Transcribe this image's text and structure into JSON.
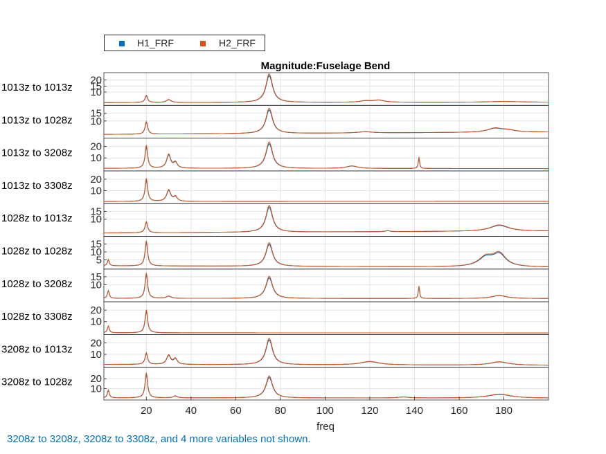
{
  "legend": {
    "items": [
      {
        "label": "H1_FRF",
        "color": "#0072BD"
      },
      {
        "label": "H2_FRF",
        "color": "#D95319"
      }
    ]
  },
  "note": "3208z to 3208z, 3208z to 3308z, and 4 more variables not shown.",
  "chart_data": {
    "type": "line",
    "title": "Magnitude:Fuselage Bend",
    "xlabel": "freq",
    "xlim": [
      1,
      200
    ],
    "x_ticks": [
      20,
      40,
      60,
      80,
      100,
      120,
      140,
      160,
      180
    ],
    "grid": true,
    "legend_position": "top-left",
    "series_names": [
      "H1_FRF",
      "H2_FRF"
    ],
    "series_colors": [
      "#0072BD",
      "#D95319"
    ],
    "panels": [
      {
        "label": "1013z to 1013z",
        "ylim": [
          0,
          25
        ],
        "yticks": [
          10,
          15,
          20
        ],
        "baseline": 1.2,
        "end": 1.5,
        "peaks": [
          [
            20,
            6,
            0.7
          ],
          [
            30,
            2.5,
            1.2
          ],
          [
            75,
            24,
            1.8
          ],
          [
            118,
            1.2,
            3
          ],
          [
            124,
            1.8,
            3
          ],
          [
            180,
            0.7,
            8
          ]
        ]
      },
      {
        "label": "1013z to 1028z",
        "ylim": [
          0,
          19
        ],
        "yticks": [
          10,
          15
        ],
        "baseline": 1.5,
        "end": 3,
        "peaks": [
          [
            20,
            8,
            0.7
          ],
          [
            75,
            16,
            1.8
          ],
          [
            118,
            0.8,
            4
          ],
          [
            176,
            2.5,
            4
          ],
          [
            182,
            1.2,
            4
          ]
        ]
      },
      {
        "label": "1013z to 3208z",
        "ylim": [
          0,
          26
        ],
        "yticks": [
          10,
          20
        ],
        "baseline": 1.0,
        "end": 0.8,
        "peaks": [
          [
            20,
            20,
            0.7
          ],
          [
            30,
            12,
            1.1
          ],
          [
            33,
            5,
            1
          ],
          [
            75,
            23,
            1.8
          ],
          [
            112,
            2.2,
            3
          ],
          [
            142,
            10,
            0.35
          ]
        ]
      },
      {
        "label": "1013z to 3308z",
        "ylim": [
          0,
          26
        ],
        "yticks": [
          10,
          20
        ],
        "baseline": 0.6,
        "end": 0.8,
        "peaks": [
          [
            20,
            20,
            0.7
          ],
          [
            30,
            10,
            1.1
          ],
          [
            33,
            4,
            1
          ]
        ]
      },
      {
        "label": "1028z to 1013z",
        "ylim": [
          0,
          19
        ],
        "yticks": [
          10,
          15
        ],
        "baseline": 1.3,
        "end": 2.5,
        "peaks": [
          [
            20,
            7,
            0.7
          ],
          [
            75,
            17,
            1.8
          ],
          [
            128,
            0.8,
            1
          ],
          [
            178,
            4,
            5
          ]
        ]
      },
      {
        "label": "1028z to 1028z",
        "ylim": [
          0,
          19
        ],
        "yticks": [
          5,
          10,
          15
        ],
        "baseline": 1.2,
        "end": 0.3,
        "peaks": [
          [
            3,
            4,
            0.5
          ],
          [
            20,
            16,
            0.7
          ],
          [
            75,
            15,
            1.8
          ],
          [
            172,
            6,
            4
          ],
          [
            178,
            8,
            3.5
          ]
        ]
      },
      {
        "label": "1028z to 3208z",
        "ylim": [
          0,
          19
        ],
        "yticks": [
          10,
          15
        ],
        "baseline": 1.3,
        "end": 1.2,
        "peaks": [
          [
            3,
            5,
            0.5
          ],
          [
            20,
            16,
            0.7
          ],
          [
            30,
            1.5,
            1.2
          ],
          [
            75,
            14,
            1.8
          ],
          [
            142,
            8,
            0.35
          ],
          [
            178,
            2,
            4
          ]
        ]
      },
      {
        "label": "1028z to 3308z",
        "ylim": [
          0,
          26
        ],
        "yticks": [
          10,
          20
        ],
        "baseline": 0.3,
        "end": 0.2,
        "peaks": [
          [
            3,
            6,
            0.5
          ],
          [
            20,
            20,
            0.7
          ]
        ]
      },
      {
        "label": "3208z to 1013z",
        "ylim": [
          0,
          26
        ],
        "yticks": [
          10,
          20
        ],
        "baseline": 1.3,
        "end": 0.5,
        "peaks": [
          [
            20,
            10,
            0.7
          ],
          [
            30,
            8,
            1.1
          ],
          [
            33,
            5,
            1
          ],
          [
            75,
            23,
            1.8
          ],
          [
            120,
            3,
            5
          ],
          [
            178,
            3,
            5
          ]
        ]
      },
      {
        "label": "3208z to 1028z",
        "ylim": [
          0,
          30
        ],
        "yticks": [
          10,
          20
        ],
        "baseline": 0.8,
        "end": 0.5,
        "peaks": [
          [
            3,
            8,
            0.5
          ],
          [
            20,
            25,
            0.7
          ],
          [
            33,
            2,
            1
          ],
          [
            75,
            22,
            1.8
          ],
          [
            135,
            1,
            3
          ],
          [
            178,
            4,
            6
          ]
        ]
      }
    ]
  }
}
